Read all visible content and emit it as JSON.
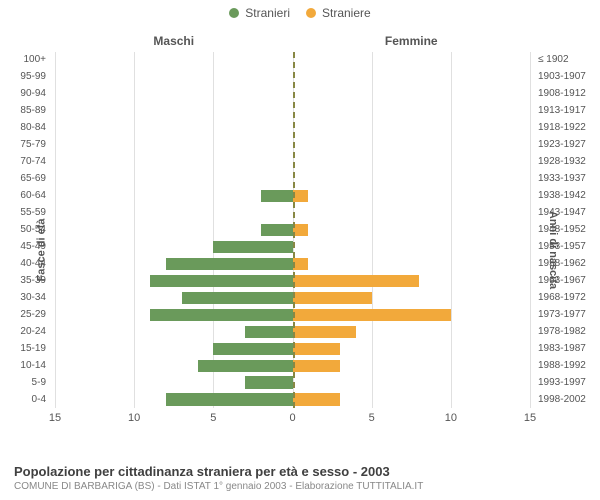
{
  "chart": {
    "type": "population-pyramid",
    "legend": [
      {
        "label": "Stranieri",
        "color": "#6a9a5b"
      },
      {
        "label": "Straniere",
        "color": "#f2a93b"
      }
    ],
    "left_header": "Maschi",
    "right_header": "Femmine",
    "y_axis_left_title": "Fasce di età",
    "y_axis_right_title": "Anni di nascita",
    "x_max": 15,
    "x_ticks": [
      15,
      10,
      5,
      0,
      5,
      10,
      15
    ],
    "male_color": "#6a9a5b",
    "female_color": "#f2a93b",
    "grid_color": "#e0e0e0",
    "background_color": "#ffffff",
    "center_line_color": "#888844",
    "tick_font_size": 10,
    "bar_height_pct": 72,
    "rows": [
      {
        "age": "100+",
        "birth": "≤ 1902",
        "m": 0,
        "f": 0
      },
      {
        "age": "95-99",
        "birth": "1903-1907",
        "m": 0,
        "f": 0
      },
      {
        "age": "90-94",
        "birth": "1908-1912",
        "m": 0,
        "f": 0
      },
      {
        "age": "85-89",
        "birth": "1913-1917",
        "m": 0,
        "f": 0
      },
      {
        "age": "80-84",
        "birth": "1918-1922",
        "m": 0,
        "f": 0
      },
      {
        "age": "75-79",
        "birth": "1923-1927",
        "m": 0,
        "f": 0
      },
      {
        "age": "70-74",
        "birth": "1928-1932",
        "m": 0,
        "f": 0
      },
      {
        "age": "65-69",
        "birth": "1933-1937",
        "m": 0,
        "f": 0
      },
      {
        "age": "60-64",
        "birth": "1938-1942",
        "m": 2,
        "f": 1
      },
      {
        "age": "55-59",
        "birth": "1943-1947",
        "m": 0,
        "f": 0
      },
      {
        "age": "50-54",
        "birth": "1948-1952",
        "m": 2,
        "f": 1
      },
      {
        "age": "45-49",
        "birth": "1953-1957",
        "m": 5,
        "f": 0
      },
      {
        "age": "40-44",
        "birth": "1958-1962",
        "m": 8,
        "f": 1
      },
      {
        "age": "35-39",
        "birth": "1963-1967",
        "m": 9,
        "f": 8
      },
      {
        "age": "30-34",
        "birth": "1968-1972",
        "m": 7,
        "f": 5
      },
      {
        "age": "25-29",
        "birth": "1973-1977",
        "m": 9,
        "f": 10
      },
      {
        "age": "20-24",
        "birth": "1978-1982",
        "m": 3,
        "f": 4
      },
      {
        "age": "15-19",
        "birth": "1983-1987",
        "m": 5,
        "f": 3
      },
      {
        "age": "10-14",
        "birth": "1988-1992",
        "m": 6,
        "f": 3
      },
      {
        "age": "5-9",
        "birth": "1993-1997",
        "m": 3,
        "f": 0
      },
      {
        "age": "0-4",
        "birth": "1998-2002",
        "m": 8,
        "f": 3
      }
    ]
  },
  "footer": {
    "title": "Popolazione per cittadinanza straniera per età e sesso - 2003",
    "subtitle": "COMUNE DI BARBARIGA (BS) - Dati ISTAT 1° gennaio 2003 - Elaborazione TUTTITALIA.IT"
  }
}
